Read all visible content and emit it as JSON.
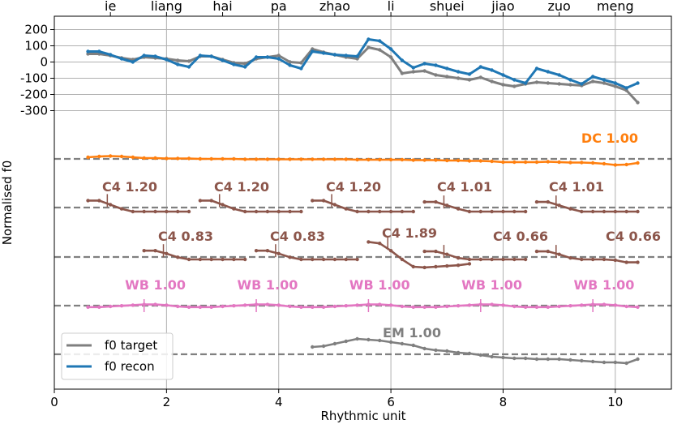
{
  "chart_data": {
    "type": "line",
    "xlabel": "Rhythmic unit",
    "ylabel": "Normalised f0",
    "xlim": [
      0,
      11
    ],
    "x_ticks": [
      0,
      2,
      4,
      6,
      8,
      10
    ],
    "x_tick_labels": [
      "0",
      "2",
      "4",
      "6",
      "8",
      "10"
    ],
    "y_ticks": [
      200,
      100,
      0,
      -100,
      -200,
      -300
    ],
    "y_tick_labels": [
      "200",
      "100",
      "0",
      "-100",
      "-200",
      "-300"
    ],
    "syllables": [
      {
        "label": "ie",
        "x": 1
      },
      {
        "label": "liang",
        "x": 2
      },
      {
        "label": "hai",
        "x": 3
      },
      {
        "label": "pa",
        "x": 4
      },
      {
        "label": "zhao",
        "x": 5
      },
      {
        "label": "li",
        "x": 6
      },
      {
        "label": "shuei",
        "x": 7
      },
      {
        "label": "jiao",
        "x": 8
      },
      {
        "label": "zuo",
        "x": 9
      },
      {
        "label": "meng",
        "x": 10
      }
    ],
    "legend": [
      {
        "name": "f0 target",
        "color": "#7f7f7f"
      },
      {
        "name": "f0 recon",
        "color": "#1f77b4"
      }
    ],
    "series": [
      {
        "name": "f0 target",
        "color": "#7f7f7f",
        "x": [
          0.6,
          0.8,
          1.0,
          1.2,
          1.4,
          1.6,
          1.8,
          2.0,
          2.2,
          2.4,
          2.6,
          2.8,
          3.0,
          3.2,
          3.4,
          3.6,
          3.8,
          4.0,
          4.2,
          4.4,
          4.6,
          4.8,
          5.0,
          5.2,
          5.4,
          5.6,
          5.8,
          6.0,
          6.2,
          6.4,
          6.6,
          6.8,
          7.0,
          7.2,
          7.4,
          7.6,
          7.8,
          8.0,
          8.2,
          8.4,
          8.6,
          8.8,
          9.0,
          9.2,
          9.4,
          9.6,
          9.8,
          10.0,
          10.2,
          10.4
        ],
        "y": [
          50,
          50,
          40,
          25,
          15,
          30,
          25,
          20,
          10,
          5,
          35,
          35,
          15,
          -5,
          -10,
          20,
          30,
          40,
          0,
          -5,
          80,
          60,
          45,
          30,
          20,
          90,
          75,
          30,
          -70,
          -60,
          -55,
          -80,
          -90,
          -100,
          -110,
          -95,
          -120,
          -140,
          -150,
          -135,
          -125,
          -130,
          -135,
          -140,
          -145,
          -120,
          -130,
          -150,
          -175,
          -250
        ]
      },
      {
        "name": "f0 recon",
        "color": "#1f77b4",
        "x": [
          0.6,
          0.8,
          1.0,
          1.2,
          1.4,
          1.6,
          1.8,
          2.0,
          2.2,
          2.4,
          2.6,
          2.8,
          3.0,
          3.2,
          3.4,
          3.6,
          3.8,
          4.0,
          4.2,
          4.4,
          4.6,
          4.8,
          5.0,
          5.2,
          5.4,
          5.6,
          5.8,
          6.0,
          6.2,
          6.4,
          6.6,
          6.8,
          7.0,
          7.2,
          7.4,
          7.6,
          7.8,
          8.0,
          8.2,
          8.4,
          8.6,
          8.8,
          9.0,
          9.2,
          9.4,
          9.6,
          9.8,
          10.0,
          10.2,
          10.4
        ],
        "y": [
          65,
          65,
          45,
          20,
          0,
          40,
          35,
          15,
          -15,
          -30,
          40,
          35,
          10,
          -15,
          -30,
          30,
          30,
          20,
          -20,
          -40,
          65,
          55,
          45,
          40,
          35,
          140,
          130,
          80,
          10,
          -35,
          -10,
          -20,
          -40,
          -60,
          -75,
          -30,
          -50,
          -80,
          -110,
          -130,
          -40,
          -60,
          -80,
          -110,
          -135,
          -90,
          -110,
          -130,
          -160,
          -130
        ]
      }
    ],
    "components": [
      {
        "label": "DC 1.00",
        "color": "#ff7f0e",
        "x": [
          0.6,
          0.8,
          1.0,
          1.2,
          1.4,
          1.6,
          1.8,
          2.0,
          2.2,
          2.4,
          2.6,
          2.8,
          3.0,
          3.2,
          3.4,
          3.6,
          3.8,
          4.0,
          4.2,
          4.4,
          4.6,
          4.8,
          5.0,
          5.2,
          5.4,
          5.6,
          5.8,
          6.0,
          6.2,
          6.4,
          6.6,
          6.8,
          7.0,
          7.2,
          7.4,
          7.6,
          7.8,
          8.0,
          8.2,
          8.4,
          8.6,
          8.8,
          9.0,
          9.2,
          9.4,
          9.6,
          9.8,
          10.0,
          10.2,
          10.4
        ],
        "y": [
          0.2,
          0.3,
          0.35,
          0.3,
          0.2,
          0.1,
          0.1,
          0.05,
          0.05,
          0.05,
          0.0,
          0.0,
          0.0,
          0.0,
          -0.05,
          -0.05,
          -0.05,
          -0.05,
          -0.05,
          -0.05,
          -0.05,
          -0.05,
          -0.05,
          -0.05,
          -0.1,
          -0.1,
          -0.1,
          -0.1,
          -0.1,
          -0.15,
          -0.15,
          -0.15,
          -0.2,
          -0.2,
          -0.25,
          -0.25,
          -0.3,
          -0.4,
          -0.4,
          -0.4,
          -0.4,
          -0.35,
          -0.4,
          -0.45,
          -0.45,
          -0.5,
          -0.6,
          -0.75,
          -0.7,
          -0.5
        ]
      },
      {
        "label": "C4 1.20",
        "color": "#8c564b",
        "x": [
          0.6,
          0.8,
          1.0,
          1.2,
          1.4,
          1.6,
          1.8,
          2.0,
          2.2,
          2.4
        ],
        "y": [
          0.8,
          0.8,
          0.5,
          0.2,
          0.0,
          0.0,
          0.0,
          0.0,
          0.0,
          0.0
        ]
      },
      {
        "label": "C4 1.20",
        "color": "#8c564b",
        "x": [
          2.6,
          2.8,
          3.0,
          3.2,
          3.4,
          3.6,
          3.8,
          4.0,
          4.2,
          4.4
        ],
        "y": [
          0.8,
          0.8,
          0.5,
          0.2,
          0.0,
          0.0,
          0.0,
          0.0,
          0.0,
          0.0
        ]
      },
      {
        "label": "C4 1.20",
        "color": "#8c564b",
        "x": [
          4.6,
          4.8,
          5.0,
          5.2,
          5.4,
          5.6,
          5.8,
          6.0,
          6.2,
          6.4
        ],
        "y": [
          0.8,
          0.8,
          0.5,
          0.2,
          0.0,
          0.0,
          0.0,
          0.0,
          0.0,
          0.0
        ]
      },
      {
        "label": "C4 1.01",
        "color": "#8c564b",
        "x": [
          6.6,
          6.8,
          7.0,
          7.2,
          7.4,
          7.6,
          7.8,
          8.0,
          8.2,
          8.4
        ],
        "y": [
          0.7,
          0.7,
          0.45,
          0.2,
          0.0,
          0.0,
          0.0,
          0.0,
          0.0,
          0.0
        ]
      },
      {
        "label": "C4 1.01",
        "color": "#8c564b",
        "x": [
          8.6,
          8.8,
          9.0,
          9.2,
          9.4,
          9.6,
          9.8,
          10.0,
          10.2,
          10.4
        ],
        "y": [
          0.7,
          0.7,
          0.45,
          0.2,
          0.0,
          0.0,
          0.0,
          0.0,
          0.0,
          0.0
        ]
      },
      {
        "label": "C4 0.83",
        "color": "#8c564b",
        "x": [
          1.6,
          1.8,
          2.0,
          2.2,
          2.4,
          2.6,
          2.8,
          3.0,
          3.2,
          3.4
        ],
        "y": [
          0.6,
          0.6,
          0.4,
          0.15,
          0.0,
          0.0,
          0.0,
          0.0,
          0.0,
          0.0
        ]
      },
      {
        "label": "C4 0.83",
        "color": "#8c564b",
        "x": [
          3.6,
          3.8,
          4.0,
          4.2,
          4.4,
          4.6,
          4.8,
          5.0,
          5.2,
          5.4
        ],
        "y": [
          0.6,
          0.6,
          0.4,
          0.15,
          0.0,
          0.0,
          0.0,
          0.0,
          0.0,
          0.0
        ]
      },
      {
        "label": "C4 1.89",
        "color": "#8c564b",
        "x": [
          5.6,
          5.8,
          6.0,
          6.2,
          6.4,
          6.6,
          6.8,
          7.0,
          7.2,
          7.4
        ],
        "y": [
          1.2,
          1.1,
          0.6,
          0.0,
          -0.5,
          -0.55,
          -0.5,
          -0.45,
          -0.4,
          -0.3
        ]
      },
      {
        "label": "C4 0.66",
        "color": "#8c564b",
        "x": [
          6.6,
          6.8,
          7.0,
          7.2,
          7.4,
          7.6,
          7.8,
          8.0,
          8.2,
          8.4
        ],
        "y": [
          0.55,
          0.55,
          0.35,
          0.1,
          0.0,
          0.0,
          0.0,
          0.0,
          0.0,
          0.0
        ]
      },
      {
        "label": "C4 0.66",
        "color": "#8c564b",
        "x": [
          8.6,
          8.8,
          9.0,
          9.2,
          9.4,
          9.6,
          9.8,
          10.0,
          10.2,
          10.4
        ],
        "y": [
          0.55,
          0.55,
          0.35,
          0.1,
          0.0,
          0.0,
          0.0,
          -0.05,
          -0.2,
          -0.2
        ]
      },
      {
        "label": "WB 1.00",
        "color": "#e377c2",
        "x": [
          0.6,
          0.8,
          1.0,
          1.2,
          1.4,
          1.6,
          1.8,
          2.0,
          2.2,
          2.4,
          2.6,
          2.8,
          3.0,
          3.2,
          3.4,
          3.6,
          3.8,
          4.0,
          4.2,
          4.4,
          4.6,
          4.8,
          5.0,
          5.2,
          5.4,
          5.6,
          5.8,
          6.0,
          6.2,
          6.4,
          6.6,
          6.8,
          7.0,
          7.2,
          7.4,
          7.6,
          7.8,
          8.0,
          8.2,
          8.4,
          8.6,
          8.8,
          9.0,
          9.2,
          9.4,
          9.6,
          9.8,
          10.0,
          10.2,
          10.4
        ],
        "y": [
          -0.1,
          -0.1,
          0.0,
          0.1,
          0.2,
          0.3,
          0.3,
          0.2,
          0.0,
          -0.1,
          -0.1,
          -0.1,
          0.0,
          0.1,
          0.2,
          0.3,
          0.3,
          0.2,
          0.0,
          -0.1,
          -0.1,
          -0.1,
          0.0,
          0.1,
          0.2,
          0.3,
          0.3,
          0.2,
          0.0,
          -0.1,
          -0.1,
          -0.1,
          0.0,
          0.1,
          0.2,
          0.3,
          0.3,
          0.2,
          0.0,
          -0.1,
          -0.1,
          -0.1,
          0.0,
          0.1,
          0.2,
          0.3,
          0.3,
          0.2,
          0.0,
          -0.1
        ]
      },
      {
        "label": "EM 1.00",
        "color": "#7f7f7f",
        "x": [
          4.6,
          4.8,
          5.0,
          5.2,
          5.4,
          5.6,
          5.8,
          6.0,
          6.2,
          6.4,
          6.6,
          6.8,
          7.0,
          7.2,
          7.4,
          7.6,
          7.8,
          8.0,
          8.2,
          8.4,
          8.6,
          8.8,
          9.0,
          9.2,
          9.4,
          9.6,
          9.8,
          10.0,
          10.2,
          10.4
        ],
        "y": [
          0.5,
          0.6,
          0.9,
          1.2,
          1.5,
          1.4,
          1.3,
          1.1,
          0.9,
          0.7,
          0.3,
          0.1,
          0.0,
          -0.2,
          -0.3,
          -0.5,
          -0.7,
          -0.8,
          -0.9,
          -0.9,
          -1.0,
          -1.0,
          -1.0,
          -1.1,
          -1.2,
          -1.3,
          -1.4,
          -1.4,
          -1.5,
          -1.0
        ]
      }
    ]
  }
}
